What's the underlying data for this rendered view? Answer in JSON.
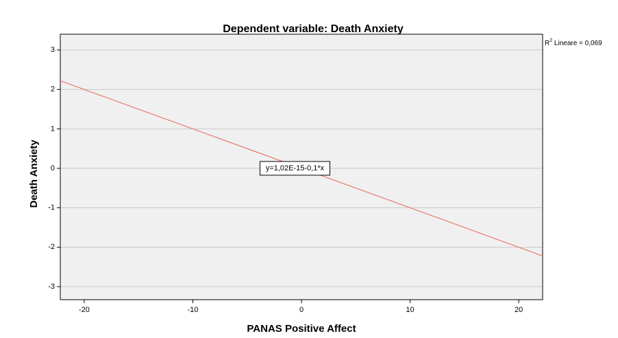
{
  "chart_data": {
    "type": "line",
    "title": "Dependent variable:  Death Anxiety",
    "x_label": "PANAS Positive Affect",
    "y_label": "Death Anxiety",
    "x": [
      -22.2,
      22.2
    ],
    "series": [
      {
        "name": "Lineare",
        "color": "#e8796f",
        "values": [
          2.22,
          -2.22
        ]
      }
    ],
    "xlim": [
      -22.2,
      22.2
    ],
    "xticks": [
      -20,
      -10,
      0,
      10,
      20
    ],
    "ylim": [
      -3.33,
      3.4
    ],
    "yticks": [
      -3,
      -2,
      -1,
      0,
      1,
      2,
      3
    ],
    "grid": true,
    "annotation": "y=1,02E-15-0,1*x",
    "legend": {
      "base": "R",
      "sup": "2",
      "rest": " Lineare = 0,069"
    }
  }
}
